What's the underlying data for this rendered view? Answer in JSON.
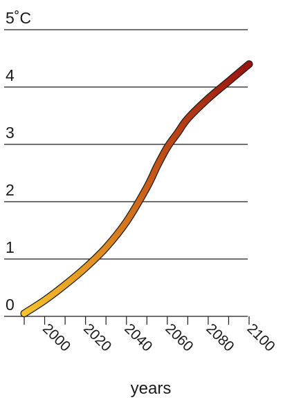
{
  "chart_data": {
    "type": "line",
    "title": "",
    "xlabel": "years",
    "ylabel": "",
    "y_top_label": "5˚C",
    "y_tick_labels": [
      "0",
      "1",
      "2",
      "3",
      "4"
    ],
    "x_tick_labels": [
      "2000",
      "2020",
      "2040",
      "2060",
      "2080",
      "2100"
    ],
    "xlim": [
      1990,
      2100
    ],
    "ylim": [
      0,
      5
    ],
    "grid": true,
    "gradient_start_color": "#f6c22b",
    "gradient_end_color": "#9a1410",
    "series": [
      {
        "x": [
          1990,
          2000,
          2010,
          2020,
          2030,
          2040,
          2050,
          2055,
          2060,
          2065,
          2070,
          2080,
          2090,
          2100
        ],
        "y": [
          0.05,
          0.28,
          0.55,
          0.85,
          1.2,
          1.65,
          2.25,
          2.62,
          2.95,
          3.2,
          3.45,
          3.8,
          4.1,
          4.4
        ]
      }
    ]
  }
}
